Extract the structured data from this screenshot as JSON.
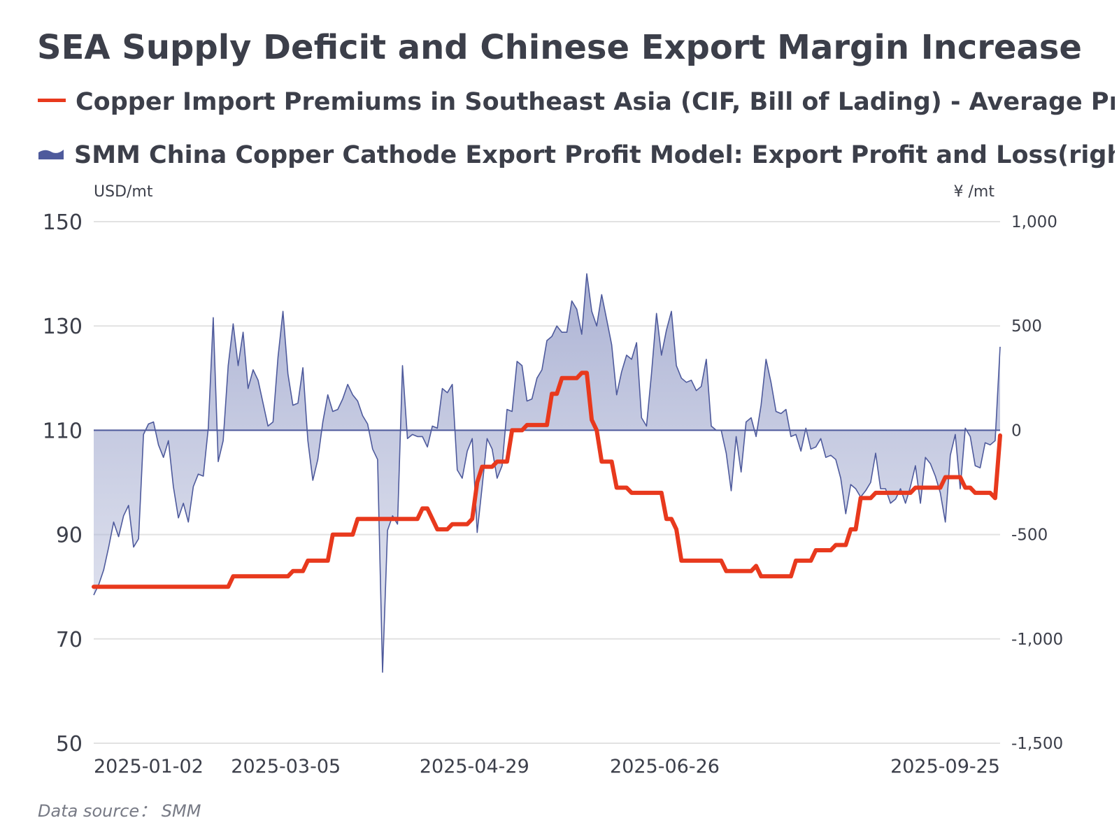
{
  "title": "SEA Supply Deficit and Chinese Export Margin Increase",
  "legend": {
    "premium": "Copper Import Premiums in Southeast Asia (CIF, Bill of Lading) - Average Price(left)",
    "profit": "SMM China Copper Cathode Export Profit Model: Export Profit and Loss(right)"
  },
  "units": {
    "left": "USD/mt",
    "right": "¥ /mt"
  },
  "source": "Data source： SMM",
  "colors": {
    "premium": "#e8391d",
    "profit_line": "#4e5a9c",
    "profit_fill": "#c4c9e0",
    "grid": "#e2e2e2",
    "text": "#3c3f4a"
  },
  "chart_data": {
    "type": "line",
    "x_tick_labels": [
      "2025-01-02",
      "2025-03-05",
      "2025-04-29",
      "2025-06-26",
      "2025-09-25"
    ],
    "y_left": {
      "label": "USD/mt",
      "range": [
        50,
        150
      ],
      "ticks": [
        "150",
        "130",
        "110",
        "90",
        "70",
        "50"
      ]
    },
    "y_right": {
      "label": "¥ /mt",
      "range": [
        -1500,
        1000
      ],
      "ticks": [
        "1,000",
        "500",
        "0",
        "-500",
        "-1,000",
        "-1,500"
      ]
    },
    "grid": true,
    "legend_position": "top",
    "series": [
      {
        "name": "Copper Import Premiums in Southeast Asia (CIF, Bill of Lading) - Average Price(left)",
        "axis": "left",
        "style": "step-line",
        "values": [
          80,
          80,
          80,
          80,
          80,
          80,
          80,
          80,
          80,
          80,
          80,
          80,
          80,
          80,
          80,
          80,
          80,
          80,
          80,
          80,
          80,
          80,
          80,
          80,
          80,
          80,
          80,
          80,
          82,
          82,
          82,
          82,
          82,
          82,
          82,
          82,
          82,
          82,
          82,
          82,
          83,
          83,
          83,
          85,
          85,
          85,
          85,
          85,
          90,
          90,
          90,
          90,
          90,
          93,
          93,
          93,
          93,
          93,
          93,
          93,
          93,
          93,
          93,
          93,
          93,
          93,
          95,
          95,
          93,
          91,
          91,
          91,
          92,
          92,
          92,
          92,
          93,
          100,
          103,
          103,
          103,
          104,
          104,
          104,
          110,
          110,
          110,
          111,
          111,
          111,
          111,
          111,
          117,
          117,
          120,
          120,
          120,
          120,
          121,
          121,
          112,
          110,
          104,
          104,
          104,
          99,
          99,
          99,
          98,
          98,
          98,
          98,
          98,
          98,
          98,
          93,
          93,
          91,
          85,
          85,
          85,
          85,
          85,
          85,
          85,
          85,
          85,
          83,
          83,
          83,
          83,
          83,
          83,
          84,
          82,
          82,
          82,
          82,
          82,
          82,
          82,
          85,
          85,
          85,
          85,
          87,
          87,
          87,
          87,
          88,
          88,
          88,
          91,
          91,
          97,
          97,
          97,
          98,
          98,
          98,
          98,
          98,
          98,
          98,
          98,
          99,
          99,
          99,
          99,
          99,
          99,
          101,
          101,
          101,
          101,
          99,
          99,
          98,
          98,
          98,
          98,
          97,
          109
        ]
      },
      {
        "name": "SMM China Copper Cathode Export Profit Model: Export Profit and Loss(right)",
        "axis": "right",
        "style": "area",
        "values": [
          -790,
          -740,
          -670,
          -560,
          -440,
          -510,
          -410,
          -360,
          -560,
          -520,
          -20,
          30,
          40,
          -70,
          -130,
          -50,
          -270,
          -420,
          -350,
          -440,
          -270,
          -210,
          -220,
          10,
          540,
          -150,
          -50,
          310,
          510,
          310,
          470,
          200,
          290,
          240,
          130,
          20,
          40,
          350,
          570,
          270,
          120,
          130,
          300,
          -50,
          -240,
          -140,
          40,
          170,
          90,
          100,
          150,
          220,
          170,
          140,
          70,
          30,
          -90,
          -140,
          -1160,
          -480,
          -410,
          -450,
          310,
          -40,
          -20,
          -30,
          -30,
          -80,
          20,
          10,
          200,
          180,
          220,
          -190,
          -230,
          -100,
          -40,
          -490,
          -270,
          -40,
          -90,
          -230,
          -170,
          100,
          90,
          330,
          310,
          140,
          150,
          250,
          290,
          430,
          450,
          500,
          470,
          470,
          620,
          580,
          460,
          750,
          570,
          500,
          650,
          530,
          410,
          170,
          280,
          360,
          340,
          420,
          60,
          20,
          270,
          560,
          360,
          480,
          570,
          310,
          250,
          230,
          240,
          190,
          210,
          340,
          20,
          0,
          0,
          -110,
          -290,
          -30,
          -200,
          40,
          60,
          -30,
          120,
          340,
          230,
          90,
          80,
          100,
          -30,
          -20,
          -100,
          10,
          -90,
          -80,
          -40,
          -130,
          -120,
          -140,
          -230,
          -400,
          -260,
          -280,
          -320,
          -290,
          -250,
          -110,
          -280,
          -280,
          -350,
          -330,
          -280,
          -350,
          -270,
          -170,
          -350,
          -130,
          -160,
          -220,
          -300,
          -440,
          -120,
          -20,
          -280,
          10,
          -30,
          -170,
          -180,
          -60,
          -70,
          -50,
          400
        ]
      }
    ]
  }
}
